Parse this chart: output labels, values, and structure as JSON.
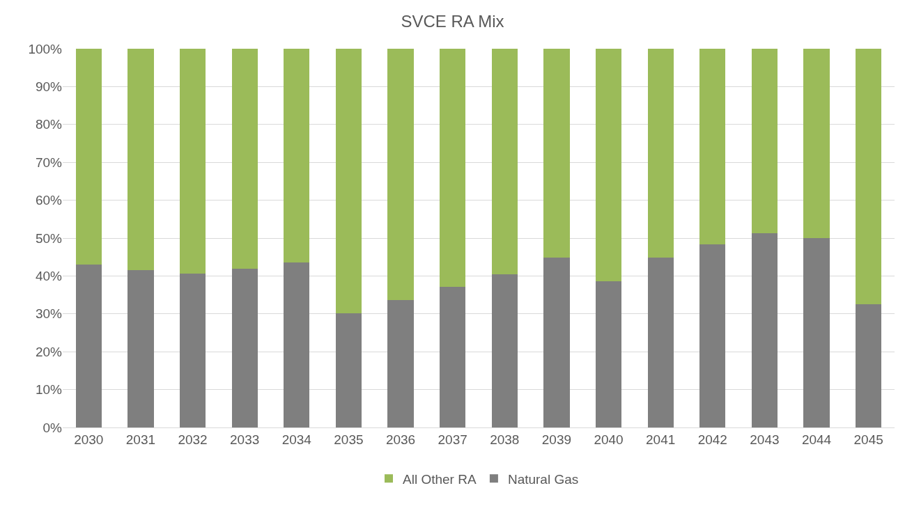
{
  "chart_data": {
    "type": "bar",
    "title": "SVCE RA Mix",
    "stacked": true,
    "categories": [
      "2030",
      "2031",
      "2032",
      "2033",
      "2034",
      "2035",
      "2036",
      "2037",
      "2038",
      "2039",
      "2040",
      "2041",
      "2042",
      "2043",
      "2044",
      "2045"
    ],
    "series": [
      {
        "name": "Natural Gas",
        "color": "#7f7f7f",
        "values": [
          43,
          41.5,
          40.6,
          41.9,
          43.6,
          30.1,
          33.6,
          37.1,
          40.4,
          44.9,
          38.6,
          44.9,
          48.3,
          51.3,
          50,
          32.5
        ]
      },
      {
        "name": "All Other RA",
        "color": "#9bbb59",
        "values": [
          57,
          58.5,
          59.4,
          58.1,
          56.4,
          69.9,
          66.4,
          62.9,
          59.6,
          55.1,
          61.4,
          55.1,
          51.7,
          48.7,
          50,
          67.5
        ]
      }
    ],
    "ylim": [
      0,
      100
    ],
    "yticks": [
      {
        "value": 0,
        "label": "0%"
      },
      {
        "value": 10,
        "label": "10%"
      },
      {
        "value": 20,
        "label": "20%"
      },
      {
        "value": 30,
        "label": "30%"
      },
      {
        "value": 40,
        "label": "40%"
      },
      {
        "value": 50,
        "label": "50%"
      },
      {
        "value": 60,
        "label": "60%"
      },
      {
        "value": 70,
        "label": "70%"
      },
      {
        "value": 80,
        "label": "80%"
      },
      {
        "value": 90,
        "label": "90%"
      },
      {
        "value": 100,
        "label": "100%"
      }
    ],
    "grid": "y",
    "legend": "bottom"
  }
}
